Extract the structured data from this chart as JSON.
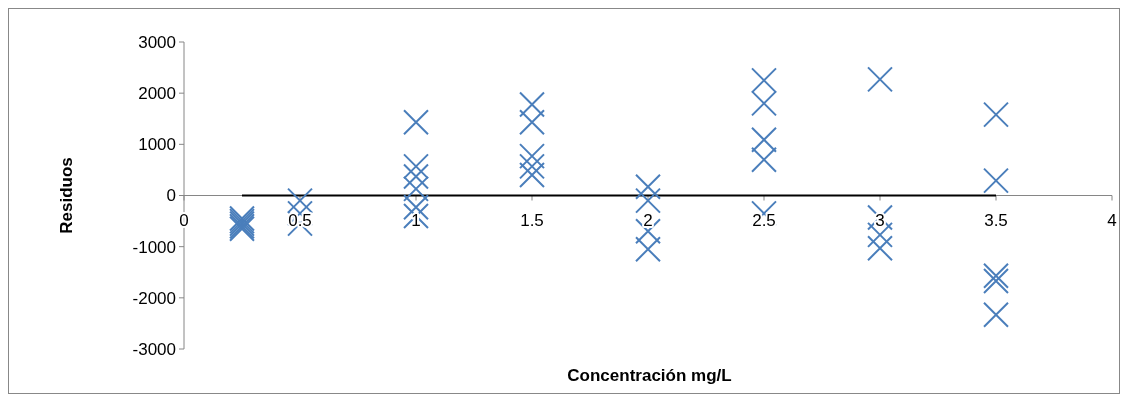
{
  "chart_data": {
    "type": "scatter",
    "xlabel": "Concentración mg/L",
    "ylabel": "Residuos",
    "xlim": [
      0,
      4
    ],
    "xticks": [
      0,
      0.5,
      1,
      1.5,
      2,
      2.5,
      3,
      3.5,
      4
    ],
    "ylim": [
      -3000,
      3000
    ],
    "yticks": [
      -3000,
      -2000,
      -1000,
      0,
      1000,
      2000,
      3000
    ],
    "grid": false,
    "marker": "cross",
    "series": [
      {
        "type": "line",
        "color": "#000000",
        "marker": "none",
        "x": [
          0.25,
          3.5
        ],
        "values": [
          0,
          0
        ]
      },
      {
        "color": "#4a7ebb",
        "x": [
          0.25,
          0.25,
          0.25,
          0.25,
          0.25,
          0.5,
          0.5,
          0.5,
          1,
          1,
          1,
          1,
          1,
          1,
          1.5,
          1.5,
          1.5,
          1.5,
          1.5,
          2,
          2,
          2,
          2,
          2.5,
          2.5,
          2.5,
          2.5,
          2.5,
          3,
          3,
          3,
          3,
          3.5,
          3.5,
          3.5,
          3.5,
          3.5
        ],
        "values": [
          -450,
          -500,
          -550,
          -600,
          -650,
          -100,
          -350,
          -550,
          1430,
          570,
          370,
          130,
          -230,
          -400,
          1780,
          1430,
          770,
          570,
          400,
          170,
          -100,
          -700,
          -1050,
          2250,
          1800,
          1090,
          700,
          -350,
          2270,
          -430,
          -770,
          -1030,
          1580,
          290,
          -1570,
          -1670,
          -2330
        ]
      }
    ]
  }
}
